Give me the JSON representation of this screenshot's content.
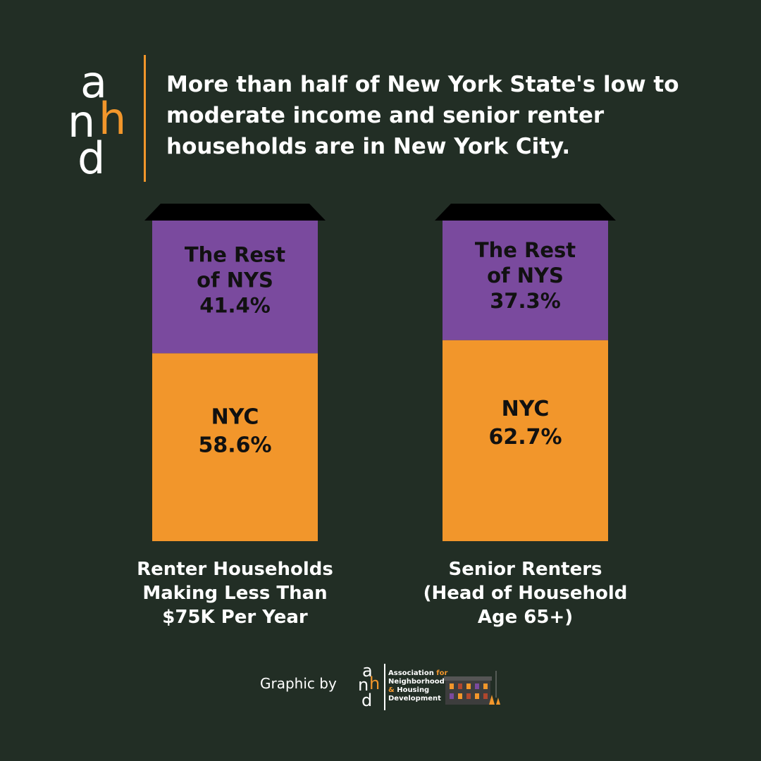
{
  "header": {
    "logo_letters": {
      "a": "a",
      "n": "n",
      "h": "h",
      "d": "d"
    },
    "headline_lines": [
      "More than half of New York State's low to",
      "moderate income and senior renter",
      "households are in New York City."
    ]
  },
  "colors": {
    "background": "#222e25",
    "nyc": "#f2962b",
    "rest_of_nys": "#7a4a9e",
    "roof": "#000000",
    "text_dark": "#111111",
    "text_light": "#ffffff"
  },
  "chart_data": {
    "type": "bar",
    "stacked": true,
    "normalized_to": 100,
    "unit": "%",
    "categories": [
      [
        "Renter Households",
        "Making Less Than",
        "$75K Per Year"
      ],
      [
        "Senior Renters",
        "(Head of Household",
        "Age 65+)"
      ]
    ],
    "series": [
      {
        "name": "NYC",
        "color": "#f2962b",
        "values": [
          58.6,
          62.7
        ],
        "labels": [
          "58.6%",
          "62.7%"
        ]
      },
      {
        "name_lines": [
          "The Rest",
          "of NYS"
        ],
        "color": "#7a4a9e",
        "values": [
          41.4,
          37.3
        ],
        "labels": [
          "41.4%",
          "37.3%"
        ]
      }
    ],
    "ylim": [
      0,
      100
    ],
    "grid": false,
    "legend": "none"
  },
  "footer": {
    "credit": "Graphic by",
    "org_lines": [
      {
        "main": "Association ",
        "accent": "for"
      },
      {
        "main": "Neighborhood",
        "accent": ""
      },
      {
        "main": "",
        "accent": "& ",
        "tail": "Housing"
      },
      {
        "main": "Development",
        "accent": ""
      }
    ]
  }
}
